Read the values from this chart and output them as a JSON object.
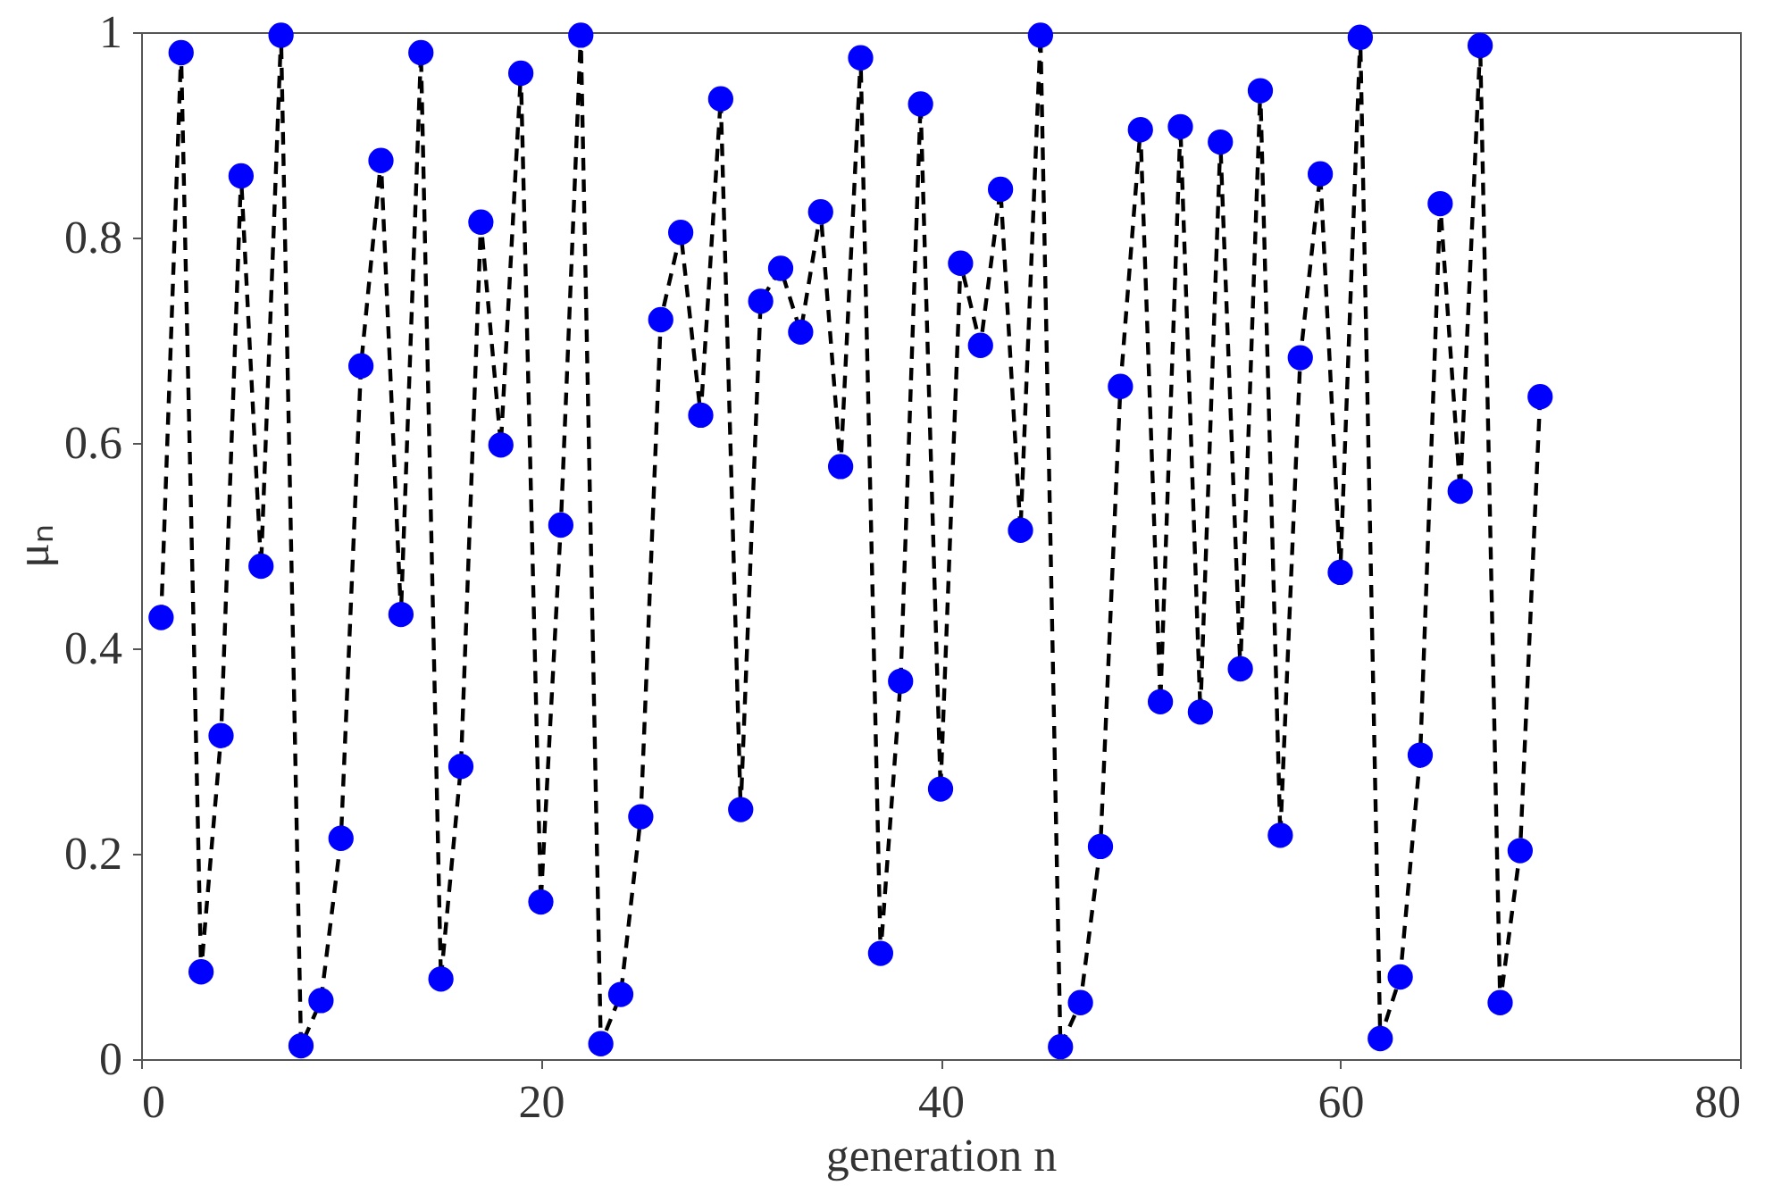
{
  "chart_data": {
    "type": "line",
    "xlabel": "generation n",
    "ylabel": "μₙ",
    "x": [
      1,
      2,
      3,
      4,
      5,
      6,
      7,
      8,
      9,
      10,
      11,
      12,
      13,
      14,
      15,
      16,
      17,
      18,
      19,
      20,
      21,
      22,
      23,
      24,
      25,
      26,
      27,
      28,
      29,
      30,
      31,
      32,
      33,
      34,
      35,
      36,
      37,
      38,
      39,
      40,
      41,
      42,
      43,
      44,
      45,
      46,
      47,
      48,
      49,
      50,
      51,
      52,
      53,
      54,
      55,
      56,
      57,
      58,
      59,
      60,
      61,
      62,
      63,
      64,
      65,
      66,
      67,
      68,
      69,
      70
    ],
    "series": [
      {
        "color": "#0000ff",
        "marker": "circle",
        "line_style": "dashed",
        "values": [
          0.43,
          0.98,
          0.085,
          0.315,
          0.86,
          0.48,
          0.997,
          0.013,
          0.057,
          0.215,
          0.675,
          0.875,
          0.433,
          0.98,
          0.078,
          0.285,
          0.815,
          0.598,
          0.96,
          0.153,
          0.52,
          0.997,
          0.015,
          0.063,
          0.236,
          0.72,
          0.805,
          0.627,
          0.935,
          0.243,
          0.738,
          0.77,
          0.708,
          0.825,
          0.577,
          0.975,
          0.103,
          0.368,
          0.93,
          0.263,
          0.775,
          0.695,
          0.847,
          0.515,
          0.997,
          0.012,
          0.055,
          0.207,
          0.655,
          0.905,
          0.348,
          0.908,
          0.338,
          0.893,
          0.38,
          0.943,
          0.218,
          0.683,
          0.862,
          0.474,
          0.995,
          0.02,
          0.08,
          0.296,
          0.833,
          0.553,
          0.987,
          0.055,
          0.203,
          0.645
        ]
      }
    ],
    "xlim": [
      0,
      80
    ],
    "xticks": [
      0,
      20,
      40,
      60,
      80
    ],
    "ylim": [
      0,
      1
    ],
    "yticks": [
      0,
      0.2,
      0.4,
      0.6,
      0.8,
      1
    ]
  }
}
